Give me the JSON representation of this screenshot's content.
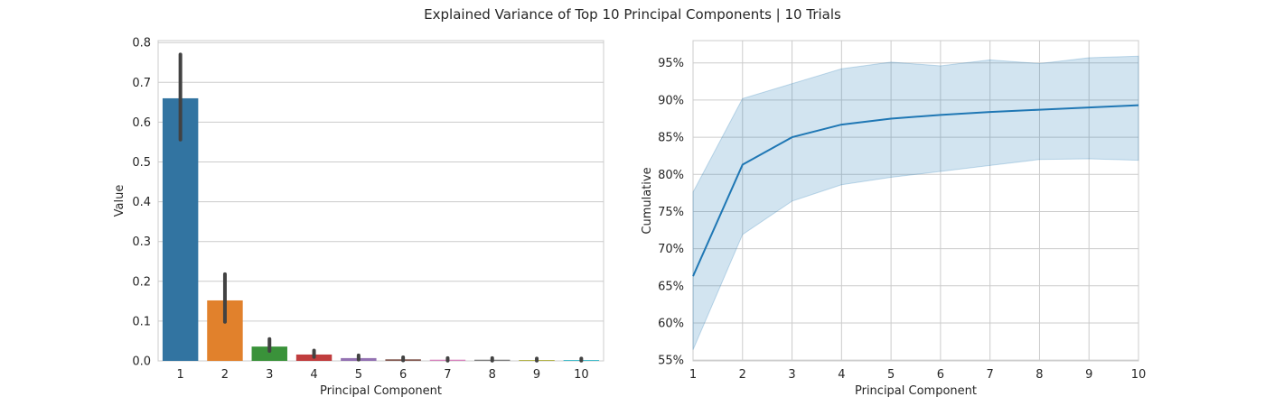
{
  "figure": {
    "title": "Explained Variance of Top 10 Principal Components | 10 Trials"
  },
  "chart_data": [
    {
      "type": "bar",
      "xlabel": "Principal Component",
      "ylabel": "Value",
      "categories": [
        "1",
        "2",
        "3",
        "4",
        "5",
        "6",
        "7",
        "8",
        "9",
        "10"
      ],
      "values": [
        0.66,
        0.152,
        0.036,
        0.016,
        0.007,
        0.004,
        0.003,
        0.003,
        0.002,
        0.002
      ],
      "error_low": [
        0.556,
        0.098,
        0.025,
        0.01,
        0.003,
        0.001,
        0.0005,
        0.0005,
        0.0005,
        0.0005
      ],
      "error_high": [
        0.77,
        0.218,
        0.055,
        0.026,
        0.014,
        0.009,
        0.007,
        0.007,
        0.006,
        0.006
      ],
      "colors": [
        "#3274a1",
        "#e1812c",
        "#3a923a",
        "#c03d3e",
        "#9372b2",
        "#845b53",
        "#d684bd",
        "#7f7f7f",
        "#a9aa35",
        "#2eb4c4"
      ],
      "error_color": "#424242",
      "ylim": [
        0,
        0.805
      ],
      "yticks": [
        0.0,
        0.1,
        0.2,
        0.3,
        0.4,
        0.5,
        0.6,
        0.7,
        0.8
      ],
      "ytick_labels": [
        "0.0",
        "0.1",
        "0.2",
        "0.3",
        "0.4",
        "0.5",
        "0.6",
        "0.7",
        "0.8"
      ],
      "grid": "horizontal"
    },
    {
      "type": "line",
      "xlabel": "Principal Component",
      "ylabel": "Cumulative",
      "x": [
        1,
        2,
        3,
        4,
        5,
        6,
        7,
        8,
        9,
        10
      ],
      "xticks": [
        "1",
        "2",
        "3",
        "4",
        "5",
        "6",
        "7",
        "8",
        "9",
        "10"
      ],
      "series": [
        {
          "values": [
            66.3,
            81.3,
            85.0,
            86.7,
            87.5,
            88.0,
            88.4,
            88.7,
            89.0,
            89.3
          ],
          "band_low": [
            56.4,
            71.9,
            76.4,
            78.6,
            79.6,
            80.4,
            81.2,
            82.0,
            82.1,
            81.9
          ],
          "band_high": [
            77.6,
            90.2,
            92.2,
            94.2,
            95.1,
            94.6,
            95.4,
            94.9,
            95.7,
            95.9
          ],
          "color": "#1f77b4",
          "band_color": "#a7c8e3"
        }
      ],
      "xlim": [
        1,
        10
      ],
      "ylim": [
        54.9,
        98.0
      ],
      "yticks": [
        55,
        60,
        65,
        70,
        75,
        80,
        85,
        90,
        95
      ],
      "ytick_labels": [
        "55%",
        "60%",
        "65%",
        "70%",
        "75%",
        "80%",
        "85%",
        "90%",
        "95%"
      ],
      "grid": "both"
    }
  ]
}
